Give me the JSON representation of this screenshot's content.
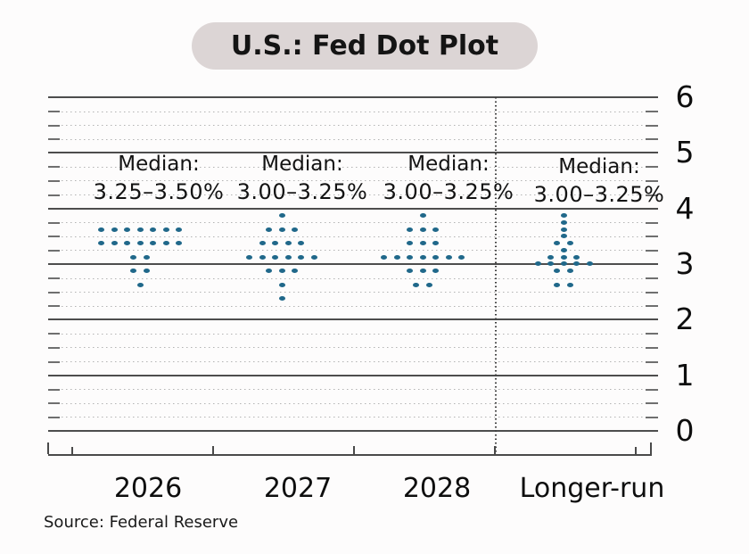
{
  "header": {
    "title": "U.S.: Fed Dot Plot"
  },
  "footer": {
    "source": "Source: Federal Reserve"
  },
  "colors": {
    "dot": "#20688a",
    "title_pill_bg": "#dcd5d5",
    "grid_major": "#4d4d4d",
    "grid_minor": "#b3b3b3"
  },
  "chart_data": {
    "type": "scatter",
    "subtype": "fed-dot-plot",
    "title": "U.S.: Fed Dot Plot",
    "source": "Source: Federal Reserve",
    "xlabel": "",
    "ylabel": "",
    "ylim": [
      0,
      6
    ],
    "yticks": [
      6,
      5,
      4,
      3,
      2,
      1,
      0
    ],
    "minor_grid_step": 0.25,
    "grid": true,
    "legend": false,
    "median_prefix": "Median:",
    "series": [
      {
        "category": "2026",
        "median": "3.25–3.50%",
        "dots": [
          {
            "rate": 3.625,
            "count": 7
          },
          {
            "rate": 3.375,
            "count": 7
          },
          {
            "rate": 3.125,
            "count": 2
          },
          {
            "rate": 2.875,
            "count": 2
          },
          {
            "rate": 2.625,
            "count": 1
          }
        ]
      },
      {
        "category": "2027",
        "median": "3.00–3.25%",
        "dots": [
          {
            "rate": 3.875,
            "count": 1
          },
          {
            "rate": 3.625,
            "count": 3
          },
          {
            "rate": 3.375,
            "count": 4
          },
          {
            "rate": 3.125,
            "count": 6
          },
          {
            "rate": 2.875,
            "count": 3
          },
          {
            "rate": 2.625,
            "count": 1
          },
          {
            "rate": 2.375,
            "count": 1
          }
        ]
      },
      {
        "category": "2028",
        "median": "3.00–3.25%",
        "dots": [
          {
            "rate": 3.875,
            "count": 1
          },
          {
            "rate": 3.625,
            "count": 3
          },
          {
            "rate": 3.375,
            "count": 3
          },
          {
            "rate": 3.125,
            "count": 7
          },
          {
            "rate": 2.875,
            "count": 3
          },
          {
            "rate": 2.625,
            "count": 2
          }
        ]
      },
      {
        "category": "Longer-run",
        "median": "3.00–3.25%",
        "dots": [
          {
            "rate": 3.875,
            "count": 1
          },
          {
            "rate": 3.75,
            "count": 1
          },
          {
            "rate": 3.625,
            "count": 1
          },
          {
            "rate": 3.5,
            "count": 1
          },
          {
            "rate": 3.375,
            "count": 2
          },
          {
            "rate": 3.25,
            "count": 1
          },
          {
            "rate": 3.125,
            "count": 3
          },
          {
            "rate": 3.0,
            "count": 5
          },
          {
            "rate": 2.875,
            "count": 2
          },
          {
            "rate": 2.625,
            "count": 2
          }
        ]
      }
    ]
  }
}
